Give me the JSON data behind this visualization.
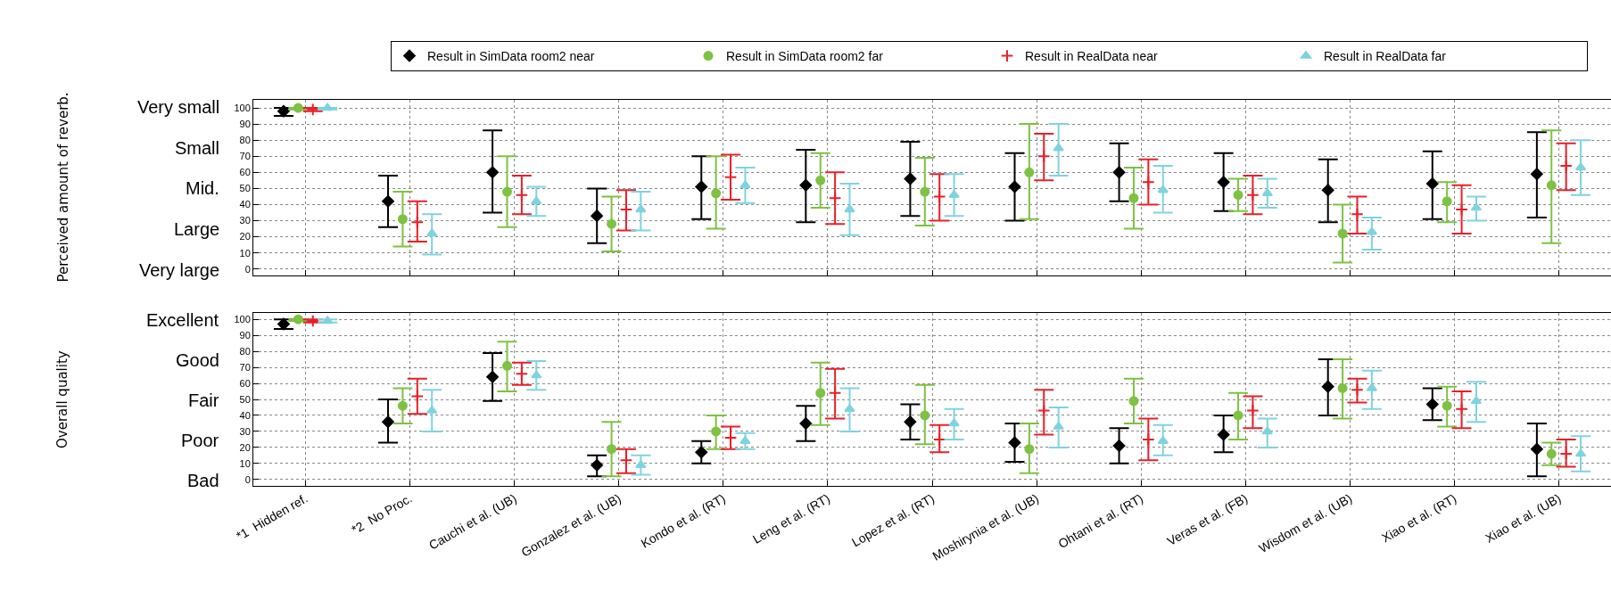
{
  "chart_data": [
    {
      "type": "scatter",
      "ylabel": "Perceived amount of reverb.",
      "categories": [
        null,
        null,
        null,
        null,
        null,
        null,
        null,
        null,
        null,
        null,
        null,
        null,
        null
      ],
      "series": [
        {
          "name": "Result in SimData room2 near",
          "color": "#000000",
          "marker": "diamond",
          "values": [
            98,
            42,
            60,
            33,
            51,
            52,
            56,
            51,
            60,
            54,
            49,
            53,
            59
          ],
          "errors": [
            [
              95,
              100
            ],
            [
              26,
              58
            ],
            [
              35,
              86
            ],
            [
              16,
              50
            ],
            [
              31,
              70
            ],
            [
              29,
              74
            ],
            [
              33,
              79
            ],
            [
              30,
              72
            ],
            [
              42,
              78
            ],
            [
              36,
              72
            ],
            [
              29,
              68
            ],
            [
              31,
              73
            ],
            [
              32,
              85
            ]
          ]
        },
        {
          "name": "Result in SimData room2 far",
          "color": "#7dc242",
          "marker": "circle",
          "values": [
            100,
            31,
            48,
            28,
            47,
            55,
            48,
            60,
            44,
            46,
            22,
            42,
            52
          ],
          "errors": [
            [
              99,
              100
            ],
            [
              14,
              48
            ],
            [
              26,
              70
            ],
            [
              11,
              45
            ],
            [
              25,
              70
            ],
            [
              38,
              72
            ],
            [
              27,
              69
            ],
            [
              31,
              90
            ],
            [
              25,
              63
            ],
            [
              36,
              56
            ],
            [
              4,
              40
            ],
            [
              29,
              54
            ],
            [
              16,
              86
            ]
          ]
        },
        {
          "name": "Result in RealData near",
          "color": "#e8202a",
          "marker": "cross",
          "values": [
            99,
            29,
            46,
            37,
            57,
            44,
            45,
            70,
            54,
            46,
            34,
            37,
            64
          ],
          "errors": [
            [
              98,
              100
            ],
            [
              17,
              42
            ],
            [
              34,
              58
            ],
            [
              24,
              49
            ],
            [
              43,
              71
            ],
            [
              28,
              60
            ],
            [
              30,
              59
            ],
            [
              55,
              84
            ],
            [
              40,
              68
            ],
            [
              34,
              58
            ],
            [
              22,
              45
            ],
            [
              22,
              52
            ],
            [
              49,
              78
            ]
          ]
        },
        {
          "name": "Result in RealData far",
          "color": "#7fd3e0",
          "marker": "triangle",
          "values": [
            100,
            22,
            42,
            37,
            52,
            37,
            46,
            75,
            49,
            47,
            23,
            38,
            63
          ],
          "errors": [
            [
              99,
              100
            ],
            [
              9,
              34
            ],
            [
              33,
              51
            ],
            [
              24,
              48
            ],
            [
              41,
              63
            ],
            [
              21,
              53
            ],
            [
              33,
              59
            ],
            [
              58,
              90
            ],
            [
              35,
              64
            ],
            [
              38,
              56
            ],
            [
              12,
              32
            ],
            [
              30,
              45
            ],
            [
              46,
              80
            ]
          ]
        }
      ],
      "ylim": [
        -4,
        105
      ],
      "yticks": [
        0,
        10,
        20,
        30,
        40,
        50,
        60,
        70,
        80,
        90,
        100
      ],
      "annotations": [
        "Very small",
        "Small",
        "Mid.",
        "Large",
        "Very large"
      ],
      "tick_labels": "y",
      "grid": true,
      "legend": "top"
    },
    {
      "type": "scatter",
      "ylabel": "Overall quality",
      "categories": [
        "*1  Hidden ref.",
        "*2  No Proc.",
        "Cauchi et al. (UB)",
        "Gonzalez et al. (UB)",
        "Kondo et al. (RT)",
        "Leng et al. (RT)",
        "Lopez et al. (RT)",
        "Moshirynia et al. (UB)",
        "Ohtani et al. (RT)",
        "Veras et al. (FB)",
        "Wisdom et al. (UB)",
        "Xiao et al. (RT)",
        "Xiao et al. (UB)"
      ],
      "series": [
        {
          "color": "#000000",
          "marker": "diamond",
          "values": [
            97,
            36,
            64,
            9,
            17,
            35,
            36,
            23,
            21,
            28,
            58,
            47,
            19
          ],
          "errors": [
            [
              94,
              100
            ],
            [
              23,
              50
            ],
            [
              49,
              79
            ],
            [
              2,
              15
            ],
            [
              10,
              24
            ],
            [
              24,
              46
            ],
            [
              25,
              47
            ],
            [
              11,
              35
            ],
            [
              10,
              32
            ],
            [
              17,
              40
            ],
            [
              40,
              75
            ],
            [
              37,
              57
            ],
            [
              2,
              35
            ]
          ]
        },
        {
          "color": "#7dc242",
          "marker": "circle",
          "values": [
            100,
            46,
            71,
            19,
            30,
            54,
            40,
            19,
            49,
            40,
            57,
            46,
            16
          ],
          "errors": [
            [
              99,
              100
            ],
            [
              35,
              57
            ],
            [
              55,
              86
            ],
            [
              2,
              36
            ],
            [
              19,
              40
            ],
            [
              34,
              73
            ],
            [
              22,
              59
            ],
            [
              4,
              35
            ],
            [
              35,
              63
            ],
            [
              25,
              54
            ],
            [
              38,
              75
            ],
            [
              33,
              58
            ],
            [
              9,
              23
            ]
          ]
        },
        {
          "color": "#e8202a",
          "marker": "cross",
          "values": [
            99,
            52,
            66,
            12,
            26,
            54,
            25,
            43,
            25,
            43,
            56,
            44,
            16
          ],
          "errors": [
            [
              98,
              100
            ],
            [
              41,
              63
            ],
            [
              59,
              73
            ],
            [
              4,
              19
            ],
            [
              19,
              33
            ],
            [
              38,
              69
            ],
            [
              17,
              34
            ],
            [
              28,
              56
            ],
            [
              12,
              38
            ],
            [
              32,
              52
            ],
            [
              48,
              63
            ],
            [
              32,
              55
            ],
            [
              8,
              25
            ]
          ]
        },
        {
          "color": "#7fd3e0",
          "marker": "triangle",
          "values": [
            99,
            43,
            65,
            9,
            24,
            44,
            35,
            33,
            24,
            30,
            57,
            49,
            16
          ],
          "errors": [
            [
              98,
              100
            ],
            [
              30,
              56
            ],
            [
              56,
              74
            ],
            [
              3,
              15
            ],
            [
              19,
              29
            ],
            [
              30,
              57
            ],
            [
              25,
              44
            ],
            [
              20,
              45
            ],
            [
              15,
              34
            ],
            [
              20,
              38
            ],
            [
              44,
              68
            ],
            [
              36,
              61
            ],
            [
              5,
              27
            ]
          ]
        }
      ],
      "ylim": [
        -4,
        104
      ],
      "yticks": [
        0,
        10,
        20,
        30,
        40,
        50,
        60,
        70,
        80,
        90,
        100
      ],
      "annotations": [
        "Excellent",
        "Good",
        "Fair",
        "Poor",
        "Bad"
      ],
      "grid": true
    }
  ]
}
